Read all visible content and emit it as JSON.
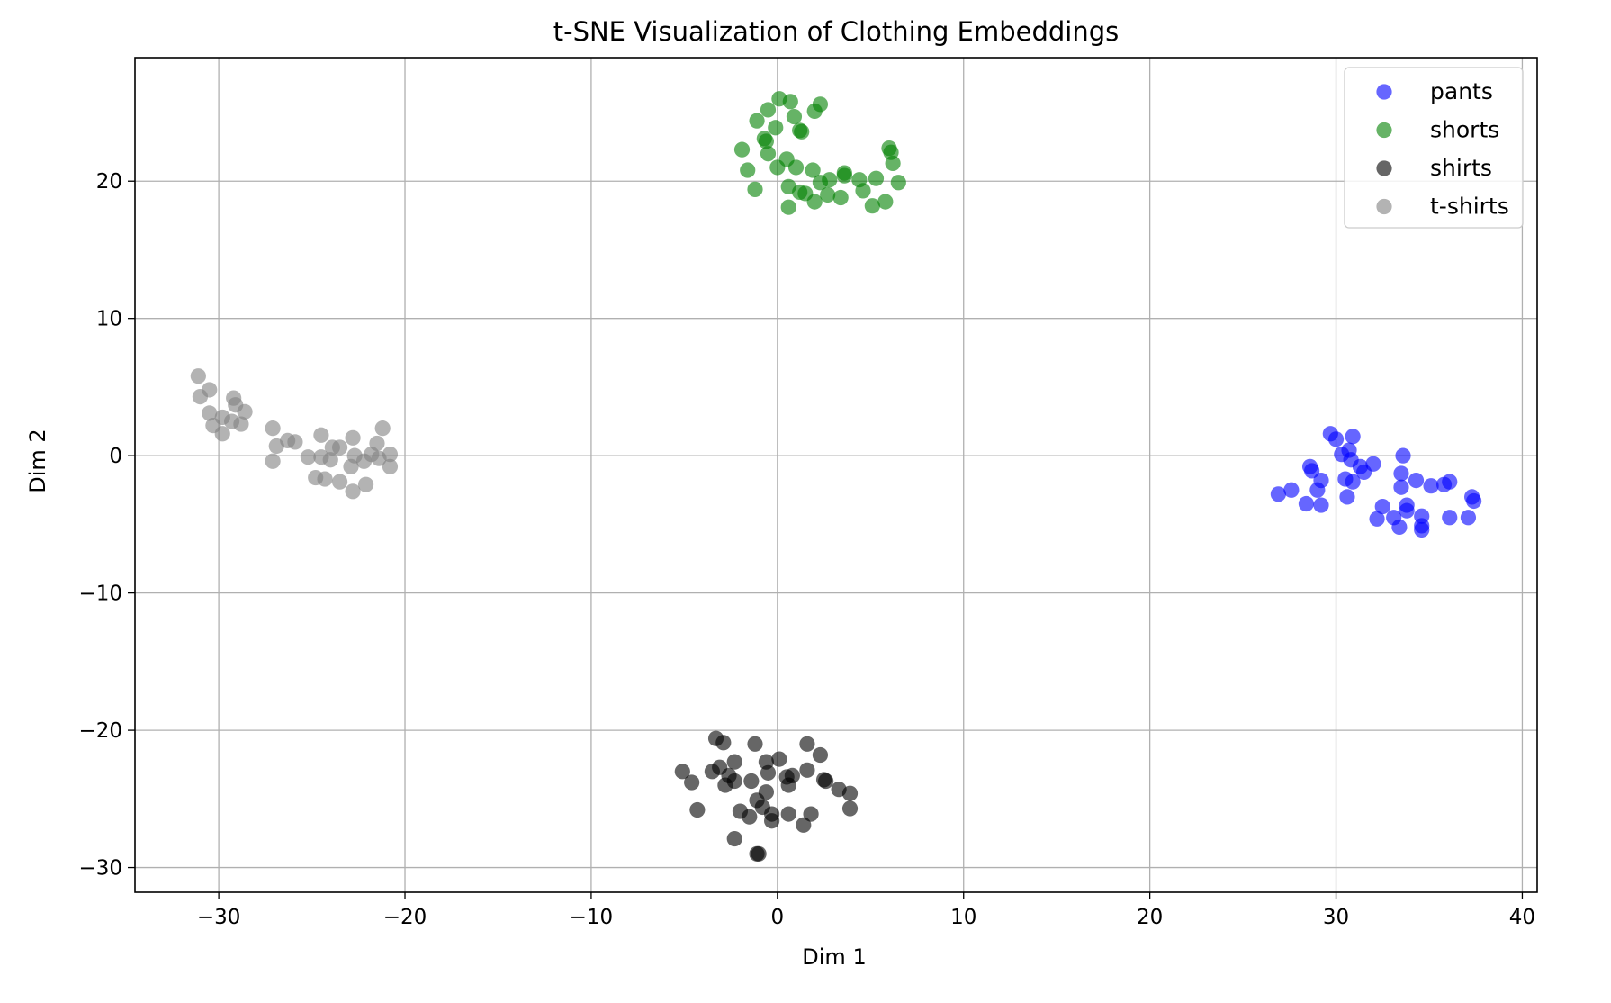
{
  "chart_data": {
    "type": "scatter",
    "title": "t-SNE Visualization of Clothing Embeddings",
    "xlabel": "Dim 1",
    "ylabel": "Dim 2",
    "xlim": [
      -34.5,
      40.8
    ],
    "ylim": [
      -31.8,
      29.0
    ],
    "xticks": [
      -30,
      -20,
      -10,
      0,
      10,
      20,
      30,
      40
    ],
    "yticks": [
      -30,
      -20,
      -10,
      0,
      10,
      20
    ],
    "xtick_labels": [
      "−30",
      "−20",
      "−10",
      "0",
      "10",
      "20",
      "30",
      "40"
    ],
    "ytick_labels": [
      "−30",
      "−20",
      "−10",
      "0",
      "10",
      "20"
    ],
    "grid": true,
    "legend_position": "top-right",
    "marker_alpha": 0.6,
    "series": [
      {
        "name": "pants",
        "color": "#0000ff",
        "points": [
          [
            29.7,
            1.6
          ],
          [
            30.0,
            1.2
          ],
          [
            30.9,
            1.4
          ],
          [
            30.7,
            0.4
          ],
          [
            30.3,
            0.1
          ],
          [
            30.8,
            -0.3
          ],
          [
            31.3,
            -0.8
          ],
          [
            31.5,
            -1.2
          ],
          [
            32.0,
            -0.6
          ],
          [
            33.6,
            0.0
          ],
          [
            28.6,
            -0.8
          ],
          [
            28.7,
            -1.1
          ],
          [
            29.2,
            -1.8
          ],
          [
            30.5,
            -1.7
          ],
          [
            30.9,
            -1.9
          ],
          [
            29.0,
            -2.5
          ],
          [
            27.6,
            -2.5
          ],
          [
            26.9,
            -2.8
          ],
          [
            28.4,
            -3.5
          ],
          [
            29.2,
            -3.6
          ],
          [
            30.6,
            -3.0
          ],
          [
            33.5,
            -1.3
          ],
          [
            34.3,
            -1.8
          ],
          [
            33.5,
            -2.3
          ],
          [
            35.1,
            -2.2
          ],
          [
            35.8,
            -2.1
          ],
          [
            36.1,
            -1.9
          ],
          [
            37.3,
            -3.0
          ],
          [
            37.4,
            -3.3
          ],
          [
            32.2,
            -4.6
          ],
          [
            32.5,
            -3.7
          ],
          [
            33.1,
            -4.5
          ],
          [
            33.8,
            -3.6
          ],
          [
            33.8,
            -4.0
          ],
          [
            34.6,
            -4.4
          ],
          [
            33.4,
            -5.2
          ],
          [
            34.6,
            -5.1
          ],
          [
            34.6,
            -5.4
          ],
          [
            36.1,
            -4.5
          ],
          [
            37.1,
            -4.5
          ]
        ]
      },
      {
        "name": "shorts",
        "color": "#008000",
        "points": [
          [
            0.1,
            26.0
          ],
          [
            0.7,
            25.8
          ],
          [
            2.3,
            25.6
          ],
          [
            2.0,
            25.1
          ],
          [
            -0.5,
            25.2
          ],
          [
            -1.1,
            24.4
          ],
          [
            0.9,
            24.7
          ],
          [
            -0.1,
            23.9
          ],
          [
            1.2,
            23.7
          ],
          [
            1.3,
            23.6
          ],
          [
            -0.7,
            23.1
          ],
          [
            -0.6,
            22.9
          ],
          [
            -1.9,
            22.3
          ],
          [
            -0.5,
            22.0
          ],
          [
            0.5,
            21.6
          ],
          [
            0.0,
            21.0
          ],
          [
            1.0,
            21.0
          ],
          [
            6.0,
            22.4
          ],
          [
            6.1,
            22.1
          ],
          [
            6.2,
            21.3
          ],
          [
            -1.6,
            20.8
          ],
          [
            1.9,
            20.8
          ],
          [
            3.6,
            20.6
          ],
          [
            3.6,
            20.4
          ],
          [
            2.3,
            19.9
          ],
          [
            2.8,
            20.1
          ],
          [
            4.4,
            20.1
          ],
          [
            5.3,
            20.2
          ],
          [
            6.5,
            19.9
          ],
          [
            -1.2,
            19.4
          ],
          [
            0.6,
            19.6
          ],
          [
            1.2,
            19.2
          ],
          [
            1.5,
            19.1
          ],
          [
            2.7,
            19.0
          ],
          [
            4.6,
            19.3
          ],
          [
            3.4,
            18.8
          ],
          [
            2.0,
            18.5
          ],
          [
            0.6,
            18.1
          ],
          [
            5.1,
            18.2
          ],
          [
            5.8,
            18.5
          ]
        ]
      },
      {
        "name": "shirts",
        "color": "#000000",
        "points": [
          [
            -3.3,
            -20.6
          ],
          [
            -2.9,
            -20.9
          ],
          [
            -1.2,
            -21.0
          ],
          [
            1.6,
            -21.0
          ],
          [
            2.3,
            -21.8
          ],
          [
            -2.3,
            -22.3
          ],
          [
            0.1,
            -22.1
          ],
          [
            -0.6,
            -22.3
          ],
          [
            -3.1,
            -22.7
          ],
          [
            -3.5,
            -23.0
          ],
          [
            -5.1,
            -23.0
          ],
          [
            -2.6,
            -23.3
          ],
          [
            -0.5,
            -23.1
          ],
          [
            1.6,
            -22.9
          ],
          [
            0.5,
            -23.4
          ],
          [
            0.8,
            -23.3
          ],
          [
            -2.3,
            -23.7
          ],
          [
            -1.4,
            -23.7
          ],
          [
            -4.6,
            -23.8
          ],
          [
            -2.8,
            -24.0
          ],
          [
            0.6,
            -24.0
          ],
          [
            2.5,
            -23.6
          ],
          [
            2.6,
            -23.7
          ],
          [
            3.3,
            -24.3
          ],
          [
            3.9,
            -24.6
          ],
          [
            -0.6,
            -24.5
          ],
          [
            -1.1,
            -25.1
          ],
          [
            -0.8,
            -25.6
          ],
          [
            -4.3,
            -25.8
          ],
          [
            -2.0,
            -25.9
          ],
          [
            -1.5,
            -26.3
          ],
          [
            -0.3,
            -26.1
          ],
          [
            -0.3,
            -26.6
          ],
          [
            0.6,
            -26.1
          ],
          [
            1.8,
            -26.1
          ],
          [
            3.9,
            -25.7
          ],
          [
            1.4,
            -26.9
          ],
          [
            -2.3,
            -27.9
          ],
          [
            -1.1,
            -29.0
          ],
          [
            -1.0,
            -29.0
          ]
        ]
      },
      {
        "name": "t-shirts",
        "color": "#808080",
        "points": [
          [
            -31.1,
            5.8
          ],
          [
            -30.5,
            4.8
          ],
          [
            -31.0,
            4.3
          ],
          [
            -29.2,
            4.2
          ],
          [
            -29.1,
            3.7
          ],
          [
            -30.5,
            3.1
          ],
          [
            -28.6,
            3.2
          ],
          [
            -29.8,
            2.8
          ],
          [
            -29.3,
            2.5
          ],
          [
            -28.8,
            2.3
          ],
          [
            -30.3,
            2.2
          ],
          [
            -29.8,
            1.6
          ],
          [
            -27.1,
            2.0
          ],
          [
            -21.2,
            2.0
          ],
          [
            -24.5,
            1.5
          ],
          [
            -22.8,
            1.3
          ],
          [
            -26.3,
            1.1
          ],
          [
            -25.9,
            1.0
          ],
          [
            -26.9,
            0.7
          ],
          [
            -23.9,
            0.6
          ],
          [
            -23.5,
            0.6
          ],
          [
            -21.5,
            0.9
          ],
          [
            -21.8,
            0.1
          ],
          [
            -25.2,
            -0.1
          ],
          [
            -24.5,
            -0.1
          ],
          [
            -22.7,
            0.0
          ],
          [
            -20.8,
            0.1
          ],
          [
            -24.0,
            -0.3
          ],
          [
            -21.4,
            -0.2
          ],
          [
            -27.1,
            -0.4
          ],
          [
            -22.2,
            -0.4
          ],
          [
            -22.9,
            -0.8
          ],
          [
            -20.8,
            -0.8
          ],
          [
            -24.8,
            -1.6
          ],
          [
            -24.3,
            -1.7
          ],
          [
            -23.5,
            -1.9
          ],
          [
            -22.1,
            -2.1
          ],
          [
            -22.8,
            -2.6
          ]
        ]
      }
    ]
  }
}
